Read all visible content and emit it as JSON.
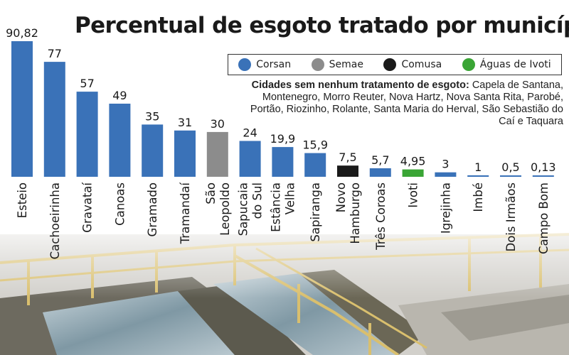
{
  "chart_data": {
    "type": "bar",
    "title": "Percentual de esgoto tratado por município",
    "categories": [
      "Esteio",
      "Cachoeirinha",
      "Gravataí",
      "Canoas",
      "Gramado",
      "Tramandaí",
      "São Leopoldo",
      "Sapucaia do Sul",
      "Estância Velha",
      "Sapiranga",
      "Novo Hamburgo",
      "Três Coroas",
      "Ivoti",
      "Igrejinha",
      "Imbé",
      "Dois Irmãos",
      "Campo Bom"
    ],
    "category_lines": [
      [
        "Esteio"
      ],
      [
        "Cachoeirinha"
      ],
      [
        "Gravataí"
      ],
      [
        "Canoas"
      ],
      [
        "Gramado"
      ],
      [
        "Tramandaí"
      ],
      [
        "São",
        "Leopoldo"
      ],
      [
        "Sapucaia",
        "do Sul"
      ],
      [
        "Estância",
        "Velha"
      ],
      [
        "Sapiranga"
      ],
      [
        "Novo",
        "Hamburgo"
      ],
      [
        "Três Coroas"
      ],
      [
        "Ivoti"
      ],
      [
        "Igrejinha"
      ],
      [
        "Imbé"
      ],
      [
        "Dois Irmãos"
      ],
      [
        "Campo Bom"
      ]
    ],
    "values": [
      90.82,
      77,
      57,
      49,
      35,
      31,
      30,
      24,
      19.9,
      15.9,
      7.5,
      5.7,
      4.95,
      3,
      1,
      0.5,
      0.13
    ],
    "value_labels": [
      "90,82",
      "77",
      "57",
      "49",
      "35",
      "31",
      "30",
      "24",
      "19,9",
      "15,9",
      "7,5",
      "5,7",
      "4,95",
      "3",
      "1",
      "0,5",
      "0,13"
    ],
    "providers": [
      "Corsan",
      "Corsan",
      "Corsan",
      "Corsan",
      "Corsan",
      "Corsan",
      "Semae",
      "Corsan",
      "Corsan",
      "Corsan",
      "Comusa",
      "Corsan",
      "Águas de Ivoti",
      "Corsan",
      "Corsan",
      "Corsan",
      "Corsan"
    ],
    "legend": [
      {
        "name": "Corsan",
        "color": "#3a72b8"
      },
      {
        "name": "Semae",
        "color": "#8c8c8c"
      },
      {
        "name": "Comusa",
        "color": "#1a1a1a"
      },
      {
        "name": "Águas de Ivoti",
        "color": "#3aa535"
      }
    ],
    "legend_position": "top-right",
    "ylim": [
      0,
      100
    ],
    "grid": false,
    "xlabel": "",
    "ylabel": ""
  },
  "note": {
    "heading": "Cidades sem nenhum tratamento de esgoto:",
    "text": "Capela de Santana, Montenegro, Morro Reuter, Nova Hartz, Nova Santa Rita, Parobé, Portão, Riozinho, Rolante, Santa Maria do Herval, São Sebastião do Caí e Taquara"
  },
  "background": {
    "sky": "#ffffff",
    "concrete": "#c9c7c2",
    "rail": "#d9bf6e",
    "water": "#8fa7b3"
  }
}
